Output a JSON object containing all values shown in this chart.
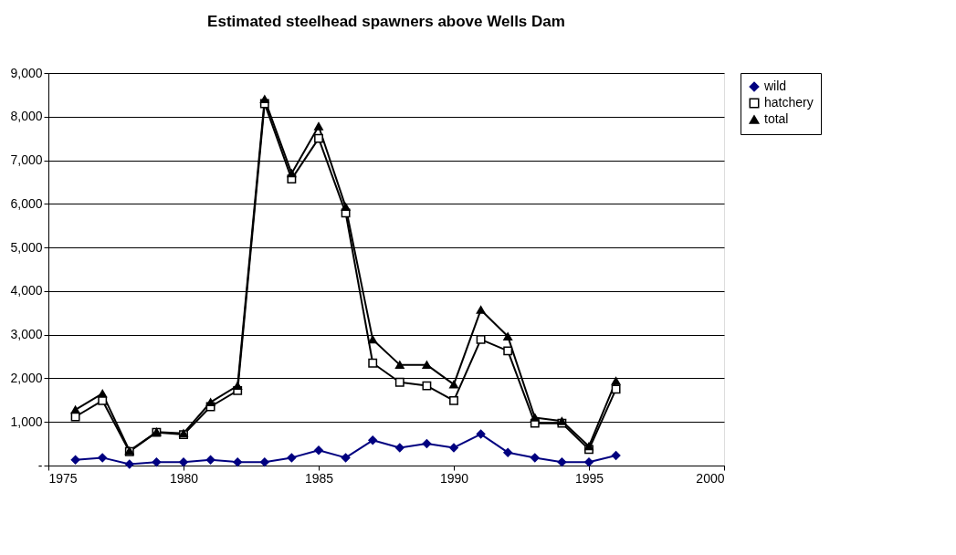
{
  "chart_data": {
    "type": "line",
    "title": "Estimated steelhead spawners above Wells Dam",
    "x": [
      1976,
      1977,
      1978,
      1979,
      1980,
      1981,
      1982,
      1983,
      1984,
      1985,
      1986,
      1987,
      1988,
      1989,
      1990,
      1991,
      1992,
      1993,
      1994,
      1995,
      1996
    ],
    "series": [
      {
        "name": "wild",
        "color": "#000080",
        "marker": "diamond",
        "values": [
          130,
          180,
          30,
          80,
          80,
          130,
          80,
          80,
          180,
          350,
          180,
          580,
          410,
          500,
          410,
          720,
          300,
          180,
          80,
          80,
          230
        ]
      },
      {
        "name": "hatchery",
        "color": "#000000",
        "marker": "square",
        "values": [
          1120,
          1490,
          320,
          760,
          710,
          1350,
          1720,
          8300,
          6570,
          7500,
          5790,
          2350,
          1910,
          1830,
          1490,
          2890,
          2630,
          970,
          970,
          370,
          1750
        ]
      },
      {
        "name": "total",
        "color": "#000000",
        "marker": "triangle",
        "values": [
          1280,
          1650,
          340,
          770,
          740,
          1450,
          1830,
          8400,
          6700,
          7780,
          5930,
          2890,
          2310,
          2310,
          1860,
          3570,
          2960,
          1100,
          1020,
          440,
          1940
        ]
      }
    ],
    "xlim": [
      1975,
      2000
    ],
    "xticks": [
      1975,
      1980,
      1985,
      1990,
      1995,
      2000
    ],
    "ylim": [
      0,
      9000
    ],
    "yticks": [
      {
        "value": 0,
        "label": "-"
      },
      {
        "value": 1000,
        "label": "1,000"
      },
      {
        "value": 2000,
        "label": "2,000"
      },
      {
        "value": 3000,
        "label": "3,000"
      },
      {
        "value": 4000,
        "label": "4,000"
      },
      {
        "value": 5000,
        "label": "5,000"
      },
      {
        "value": 6000,
        "label": "6,000"
      },
      {
        "value": 7000,
        "label": "7,000"
      },
      {
        "value": 8000,
        "label": "8,000"
      },
      {
        "value": 9000,
        "label": "9,000"
      }
    ],
    "grid": "y",
    "legend": "right"
  }
}
